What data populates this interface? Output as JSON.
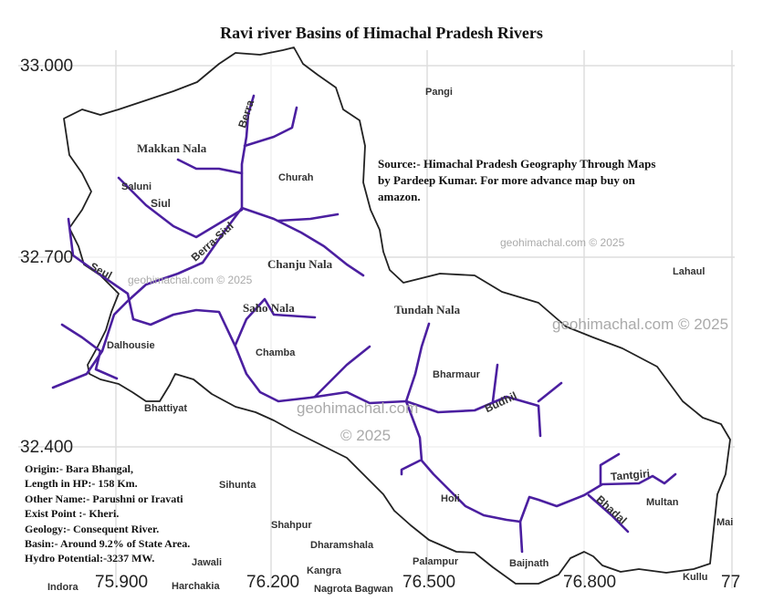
{
  "title": "Ravi river Basins of Himachal Pradesh Rivers",
  "axes": {
    "latitude_ticks": [
      "33.000",
      "32.700",
      "32.400"
    ],
    "longitude_ticks": [
      "75.900",
      "76.200",
      "76.500",
      "76.800",
      "77"
    ],
    "grid": true
  },
  "colors": {
    "river": "#4b1fa0",
    "boundary": "#222222",
    "grid": "#dddddd"
  },
  "source_note": "Source:- Himachal Pradesh Geography Through Maps by Pardeep Kumar. For more advance map buy on amazon.",
  "facts": [
    "Origin:- Bara Bhangal,",
    "Length in HP:- 158 Km.",
    "Other Name:- Parushni or Iravati",
    "Exist Point :- Kheri.",
    "Geology:- Consequent River.",
    "Basin:- Around 9.2% of State Area.",
    "Hydro Potential:-3237 MW."
  ],
  "rivers": [
    "Berra",
    "Makkan Nala",
    "Siul",
    "Berra-Siul",
    "Seul",
    "Chanju Nala",
    "Saho Nala",
    "Tundah Nala",
    "Budhil",
    "Tantgiri",
    "Bhadal"
  ],
  "places": [
    "Pangi",
    "Churah",
    "Saluni",
    "Lahaul",
    "Dalhousie",
    "Chamba",
    "Bharmaur",
    "Bhattiyat",
    "Sihunta",
    "Holi",
    "Multan",
    "Mai",
    "Shahpur",
    "Dharamshala",
    "Jawali",
    "Indora",
    "Harchakia",
    "Kangra",
    "Nagrota Bagwan",
    "Palampur",
    "Baijnath",
    "Kullu"
  ],
  "watermarks": [
    "geohimachal.com © 2025",
    "geohimachal.com © 2025",
    "geohimachal.com © 2025",
    "geohimachal.com",
    "© 2025"
  ]
}
